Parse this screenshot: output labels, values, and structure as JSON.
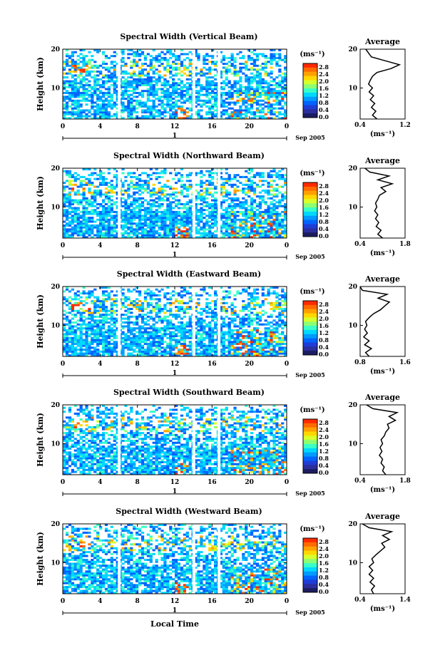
{
  "figure": {
    "xlabel": "Local Time",
    "date_label": "Sep 2005",
    "day_label": "1",
    "colorbar_unit": "(ms⁻¹)",
    "colorbar_ticks": [
      "2.8",
      "2.4",
      "2.0",
      "1.6",
      "1.2",
      "0.8",
      "0.4",
      "0.0"
    ],
    "colorbar_colors": [
      "#ff2a00",
      "#ff6a00",
      "#ffa000",
      "#ffd700",
      "#d8ff2c",
      "#8cff73",
      "#38ffc8",
      "#00d8ff",
      "#009cff",
      "#0064ff",
      "#1f3dd6",
      "#2b2e9c",
      "#1c1c60"
    ],
    "avg_title": "Average",
    "avg_xlabel": "(ms⁻¹)",
    "ylabel": "Height (km)",
    "x_ticks": [
      "0",
      "4",
      "8",
      "12",
      "16",
      "20",
      "0"
    ],
    "y_ticks": [
      "20",
      "10"
    ],
    "avg_y_ticks": [
      "20",
      "10"
    ]
  },
  "chart_data": [
    {
      "type": "heatmap",
      "title": "Spectral Width (Vertical Beam)",
      "xlabel": "",
      "ylabel": "Height (km)",
      "xlim": [
        0,
        24
      ],
      "ylim": [
        2,
        20
      ],
      "gaps_hours": [
        [
          5.9,
          6.2
        ],
        [
          13.9,
          14.2
        ],
        [
          16.6,
          16.9
        ]
      ],
      "average": {
        "title": "Average",
        "xlim": [
          0.4,
          1.2
        ],
        "xticks": [
          "0.4",
          "1.2"
        ],
        "profile": [
          [
            2,
            0.7
          ],
          [
            3,
            0.62
          ],
          [
            4,
            0.68
          ],
          [
            5,
            0.6
          ],
          [
            6,
            0.66
          ],
          [
            7,
            0.58
          ],
          [
            8,
            0.64
          ],
          [
            9,
            0.56
          ],
          [
            10,
            0.62
          ],
          [
            11,
            0.55
          ],
          [
            12,
            0.58
          ],
          [
            13,
            0.62
          ],
          [
            14,
            0.7
          ],
          [
            15,
            0.95
          ],
          [
            16,
            1.1
          ],
          [
            17,
            0.85
          ],
          [
            18,
            0.6
          ],
          [
            19,
            0.55
          ],
          [
            20,
            0.5
          ]
        ]
      }
    },
    {
      "type": "heatmap",
      "title": "Spectral Width (Northward Beam)",
      "xlabel": "",
      "ylabel": "Height (km)",
      "xlim": [
        0,
        24
      ],
      "ylim": [
        2,
        20
      ],
      "gaps_hours": [
        [
          5.9,
          6.2
        ],
        [
          13.9,
          14.2
        ],
        [
          16.6,
          16.9
        ]
      ],
      "average": {
        "title": "Average",
        "xlim": [
          0.4,
          1.8
        ],
        "xticks": [
          "0.4",
          "1.8"
        ],
        "profile": [
          [
            2,
            1.1
          ],
          [
            3,
            0.95
          ],
          [
            4,
            1.05
          ],
          [
            5,
            0.9
          ],
          [
            6,
            0.98
          ],
          [
            7,
            0.88
          ],
          [
            8,
            0.95
          ],
          [
            9,
            0.85
          ],
          [
            10,
            0.92
          ],
          [
            11,
            0.88
          ],
          [
            12,
            0.95
          ],
          [
            13,
            1.0
          ],
          [
            14,
            1.2
          ],
          [
            15,
            1.05
          ],
          [
            16,
            1.4
          ],
          [
            17,
            0.95
          ],
          [
            18,
            1.3
          ],
          [
            19,
            0.7
          ],
          [
            20,
            0.55
          ]
        ]
      }
    },
    {
      "type": "heatmap",
      "title": "Spectral Width (Eastward Beam)",
      "xlabel": "",
      "ylabel": "Height (km)",
      "xlim": [
        0,
        24
      ],
      "ylim": [
        2,
        20
      ],
      "gaps_hours": [
        [
          5.9,
          6.2
        ],
        [
          13.9,
          14.2
        ],
        [
          16.6,
          16.9
        ]
      ],
      "average": {
        "title": "Average",
        "xlim": [
          0.8,
          1.8
        ],
        "xticks": [
          "0.8",
          "1.6"
        ],
        "profile": [
          [
            2,
            1.0
          ],
          [
            3,
            0.92
          ],
          [
            4,
            1.05
          ],
          [
            5,
            0.9
          ],
          [
            6,
            1.0
          ],
          [
            7,
            0.88
          ],
          [
            8,
            0.96
          ],
          [
            9,
            0.9
          ],
          [
            10,
            0.95
          ],
          [
            11,
            0.92
          ],
          [
            12,
            1.0
          ],
          [
            13,
            1.1
          ],
          [
            14,
            1.25
          ],
          [
            15,
            1.35
          ],
          [
            16,
            1.45
          ],
          [
            17,
            1.2
          ],
          [
            18,
            1.4
          ],
          [
            19,
            0.85
          ],
          [
            20,
            0.7
          ]
        ]
      }
    },
    {
      "type": "heatmap",
      "title": "Spectral Width (Southward Beam)",
      "xlabel": "",
      "ylabel": "Height (km)",
      "xlim": [
        0,
        24
      ],
      "ylim": [
        2,
        20
      ],
      "gaps_hours": [
        [
          5.9,
          6.2
        ],
        [
          13.9,
          14.2
        ],
        [
          16.6,
          16.9
        ]
      ],
      "average": {
        "title": "Average",
        "xlim": [
          0.4,
          1.8
        ],
        "xticks": [
          "0.4",
          "1.8"
        ],
        "profile": [
          [
            2,
            1.2
          ],
          [
            3,
            1.1
          ],
          [
            4,
            1.15
          ],
          [
            5,
            1.05
          ],
          [
            6,
            1.1
          ],
          [
            7,
            1.0
          ],
          [
            8,
            1.08
          ],
          [
            9,
            1.02
          ],
          [
            10,
            1.1
          ],
          [
            11,
            1.05
          ],
          [
            12,
            1.15
          ],
          [
            13,
            1.2
          ],
          [
            14,
            1.3
          ],
          [
            15,
            1.25
          ],
          [
            16,
            1.5
          ],
          [
            17,
            1.3
          ],
          [
            18,
            1.55
          ],
          [
            19,
            0.8
          ],
          [
            20,
            0.6
          ]
        ]
      }
    },
    {
      "type": "heatmap",
      "title": "Spectral Width (Westward Beam)",
      "xlabel": "Local Time",
      "ylabel": "Height (km)",
      "xlim": [
        0,
        24
      ],
      "ylim": [
        2,
        20
      ],
      "gaps_hours": [
        [
          5.9,
          6.2
        ],
        [
          13.9,
          14.2
        ],
        [
          16.6,
          16.9
        ]
      ],
      "average": {
        "title": "Average",
        "xlim": [
          0.4,
          1.4
        ],
        "xticks": [
          "0.4",
          "1.4"
        ],
        "profile": [
          [
            2,
            0.7
          ],
          [
            3,
            0.65
          ],
          [
            4,
            0.72
          ],
          [
            5,
            0.62
          ],
          [
            6,
            0.7
          ],
          [
            7,
            0.6
          ],
          [
            8,
            0.68
          ],
          [
            9,
            0.6
          ],
          [
            10,
            0.7
          ],
          [
            11,
            0.66
          ],
          [
            12,
            0.75
          ],
          [
            13,
            0.85
          ],
          [
            14,
            0.95
          ],
          [
            15,
            0.88
          ],
          [
            16,
            1.05
          ],
          [
            17,
            0.9
          ],
          [
            18,
            1.1
          ],
          [
            19,
            0.6
          ],
          [
            20,
            0.45
          ]
        ]
      }
    }
  ]
}
